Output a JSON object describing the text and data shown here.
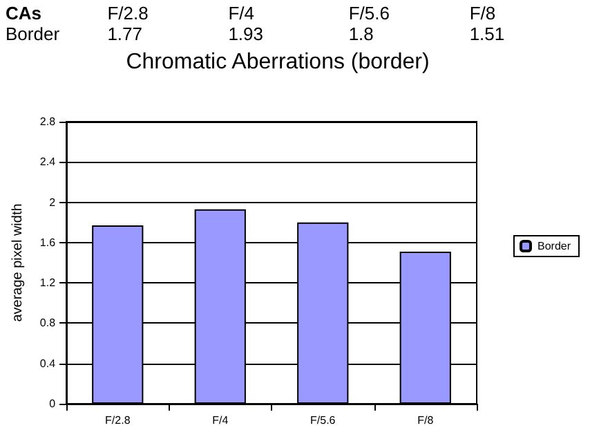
{
  "chart_data": {
    "type": "bar",
    "title": "Chromatic Aberrations (border)",
    "ylabel": "average pixel width",
    "categories": [
      "F/2.8",
      "F/4",
      "F/5.6",
      "F/8"
    ],
    "series": [
      {
        "name": "Border",
        "color": "#9999ff",
        "values": [
          1.77,
          1.93,
          1.8,
          1.51
        ]
      }
    ],
    "ylim": [
      0,
      2.8
    ],
    "yticks": [
      0,
      0.4,
      0.8,
      1.2,
      1.6,
      2,
      2.4,
      2.8
    ],
    "grid": "y",
    "legend": "right",
    "data_labels": true,
    "annotations": [
      "CAs"
    ]
  }
}
